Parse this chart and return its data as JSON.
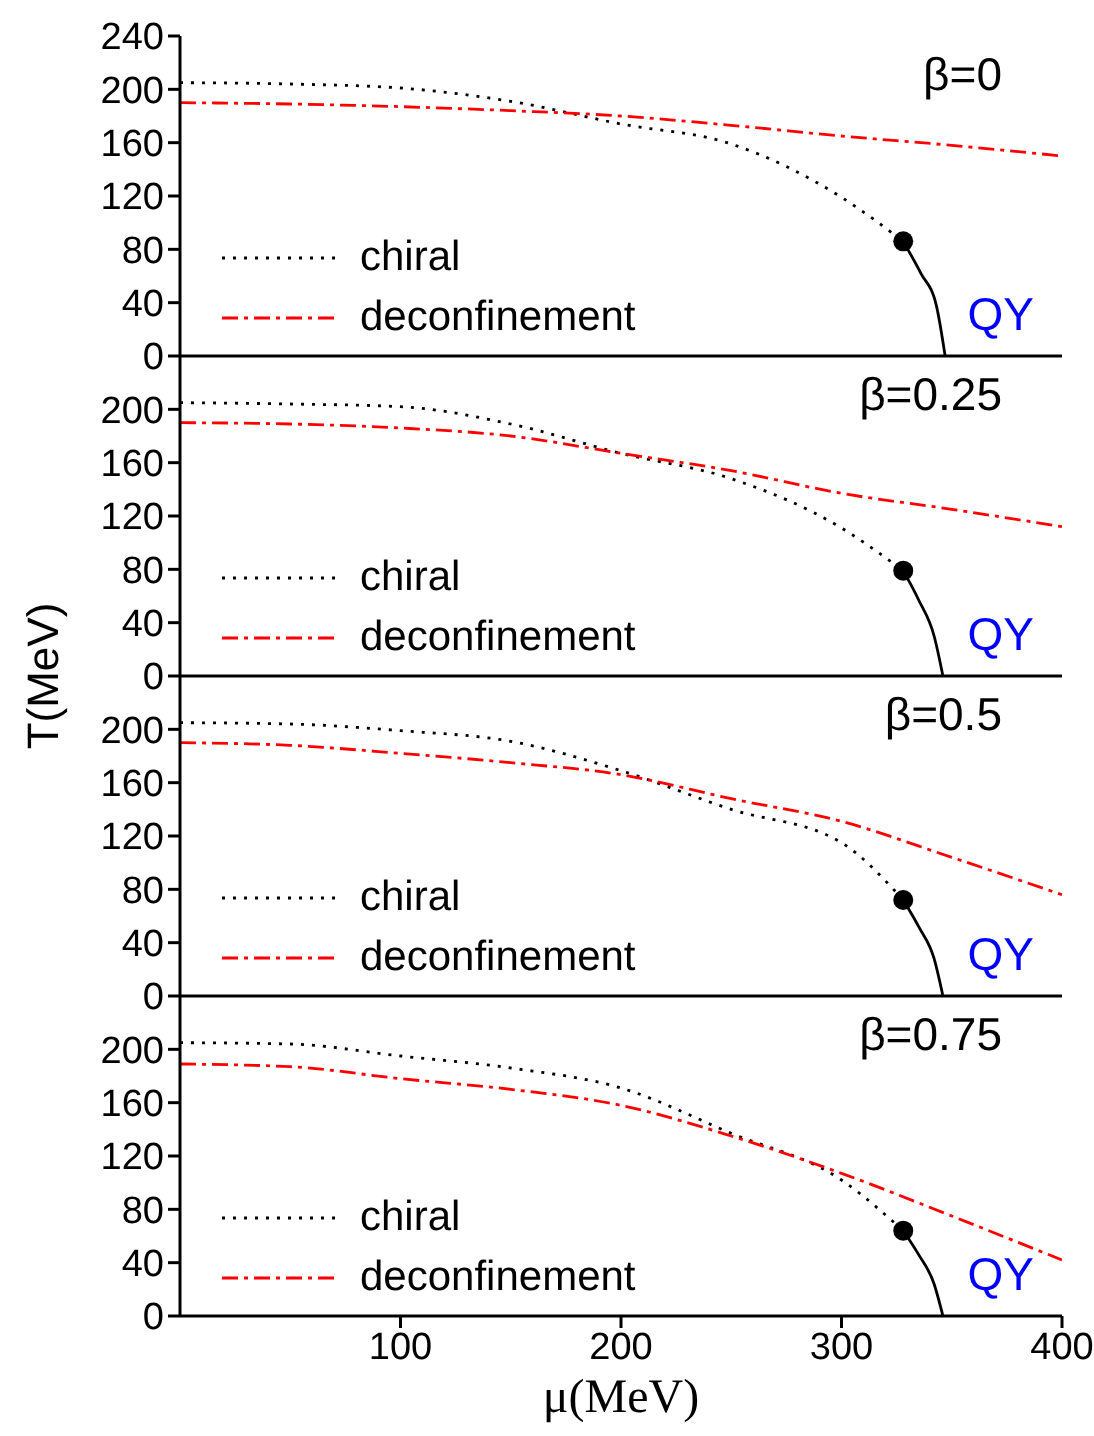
{
  "chart_data": [
    {
      "type": "line",
      "title": "β=0",
      "ylabel": "T(MeV)",
      "xlim": [
        0,
        400
      ],
      "xticks": [
        100,
        200,
        300,
        400
      ],
      "ylim": [
        0,
        240
      ],
      "yticks": [
        0,
        40,
        80,
        120,
        160,
        200,
        240
      ],
      "tick_labels": "y",
      "legend": "bottom left",
      "grid": false,
      "annotations": [
        "QY"
      ],
      "series": [
        {
          "name": "chiral",
          "color": "#000000",
          "line_style": "dotted",
          "x": [
            0,
            50,
            100,
            150,
            200,
            250,
            300,
            328
          ],
          "values": [
            205,
            204,
            201,
            191,
            174,
            159,
            119,
            86
          ]
        },
        {
          "name": "deconfinement",
          "color": "#ff0000",
          "line_style": "dashed",
          "x": [
            0,
            50,
            100,
            150,
            200,
            250,
            300,
            350,
            400
          ],
          "values": [
            190,
            189,
            187,
            184,
            180,
            173,
            165,
            158,
            150
          ]
        },
        {
          "color": "#000000",
          "line_style": "solid",
          "x": [
            328,
            336,
            343,
            347
          ],
          "values": [
            86,
            62,
            38,
            0
          ]
        },
        {
          "type": "scatter",
          "marker": "circle",
          "color": "#000000",
          "x": [
            328
          ],
          "values": [
            86
          ]
        }
      ]
    },
    {
      "type": "line",
      "title": "β=0.25",
      "xlim": [
        0,
        400
      ],
      "xticks": [
        100,
        200,
        300,
        400
      ],
      "ylim": [
        0,
        240
      ],
      "yticks": [
        0,
        40,
        80,
        120,
        160,
        200
      ],
      "tick_labels": "y",
      "legend": "bottom left",
      "grid": false,
      "annotations": [
        "QY"
      ],
      "series": [
        {
          "name": "chiral",
          "color": "#000000",
          "line_style": "dotted",
          "x": [
            0,
            50,
            100,
            150,
            200,
            250,
            300,
            328
          ],
          "values": [
            205,
            204,
            202,
            189,
            167,
            148,
            111,
            79
          ]
        },
        {
          "name": "deconfinement",
          "color": "#ff0000",
          "line_style": "dashed",
          "x": [
            0,
            50,
            100,
            150,
            200,
            250,
            300,
            350,
            400
          ],
          "values": [
            190,
            189,
            186,
            180,
            167,
            154,
            137,
            125,
            112
          ]
        },
        {
          "color": "#000000",
          "line_style": "solid",
          "x": [
            328,
            335,
            342,
            346
          ],
          "values": [
            79,
            57,
            30,
            0
          ]
        },
        {
          "type": "scatter",
          "marker": "circle",
          "color": "#000000",
          "x": [
            328
          ],
          "values": [
            79
          ]
        }
      ]
    },
    {
      "type": "line",
      "title": "β=0.5",
      "xlim": [
        0,
        400
      ],
      "xticks": [
        100,
        200,
        300,
        400
      ],
      "ylim": [
        0,
        240
      ],
      "yticks": [
        0,
        40,
        80,
        120,
        160,
        200
      ],
      "tick_labels": "y",
      "legend": "bottom left",
      "grid": false,
      "annotations": [
        "QY"
      ],
      "series": [
        {
          "name": "chiral",
          "color": "#000000",
          "line_style": "dotted",
          "x": [
            0,
            50,
            100,
            150,
            200,
            250,
            300,
            328
          ],
          "values": [
            205,
            204,
            199,
            191,
            169,
            140,
            115,
            72
          ]
        },
        {
          "name": "deconfinement",
          "color": "#ff0000",
          "line_style": "dashed",
          "x": [
            0,
            50,
            100,
            150,
            200,
            250,
            300,
            350,
            400
          ],
          "values": [
            190,
            188,
            182,
            175,
            166,
            148,
            131,
            104,
            76
          ]
        },
        {
          "color": "#000000",
          "line_style": "solid",
          "x": [
            328,
            335,
            342,
            346
          ],
          "values": [
            72,
            52,
            28,
            0
          ]
        },
        {
          "type": "scatter",
          "marker": "circle",
          "color": "#000000",
          "x": [
            328
          ],
          "values": [
            72
          ]
        }
      ]
    },
    {
      "type": "line",
      "title": "β=0.75",
      "xlabel": "μ(MeV)",
      "xlim": [
        0,
        400
      ],
      "xticks": [
        100,
        200,
        300,
        400
      ],
      "ylim": [
        0,
        240
      ],
      "yticks": [
        0,
        40,
        80,
        120,
        160,
        200
      ],
      "legend": "bottom left",
      "grid": false,
      "annotations": [
        "QY"
      ],
      "series": [
        {
          "name": "chiral",
          "color": "#000000",
          "line_style": "dotted",
          "x": [
            0,
            50,
            100,
            150,
            200,
            250,
            300,
            328
          ],
          "values": [
            205,
            204,
            195,
            186,
            171,
            137,
            102,
            64
          ]
        },
        {
          "name": "deconfinement",
          "color": "#ff0000",
          "line_style": "dashed",
          "x": [
            0,
            50,
            100,
            150,
            200,
            250,
            300,
            350,
            400
          ],
          "values": [
            189,
            187,
            178,
            170,
            158,
            135,
            107,
            75,
            42
          ]
        },
        {
          "color": "#000000",
          "line_style": "solid",
          "x": [
            328,
            335,
            342,
            346
          ],
          "values": [
            64,
            46,
            24,
            0
          ]
        },
        {
          "type": "scatter",
          "marker": "circle",
          "color": "#000000",
          "x": [
            328
          ],
          "values": [
            64
          ]
        }
      ]
    }
  ]
}
